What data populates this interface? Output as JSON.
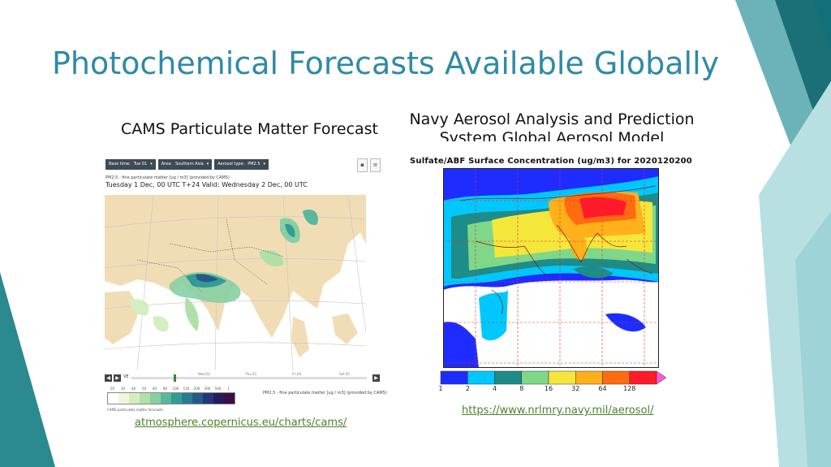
{
  "slide": {
    "title": "Photochemical Forecasts Available Globally",
    "left_heading": "CAMS Particulate Matter Forecast",
    "right_heading": "Navy Aerosol Analysis and Prediction System Global Aerosol Model",
    "left_link": "atmosphere.copernicus.eu/charts/cams/",
    "right_link": "https://www.nrlmry.navy.mil/aerosol/",
    "colors": {
      "title": "#2f8aa6",
      "accent_dark": "#1d7a82",
      "accent_mid": "#3a9aa0",
      "accent_light": "#b7dfe2",
      "link": "#4e7f2f"
    }
  },
  "cams_panel": {
    "dropdowns": [
      {
        "label": "Base time:",
        "value": "Tue 01"
      },
      {
        "label": "Area:",
        "value": "Southern Asia"
      },
      {
        "label": "Aerosol type:",
        "value": "PM2.5"
      }
    ],
    "subtitle": "PM2.5 - fine particulate matter [ug / m3] (provided by CAMS)",
    "valid_line": "Tuesday 1 Dec, 00 UTC T+24 Valid: Wednesday 2 Dec, 00 UTC",
    "timeline": {
      "label": "VE",
      "days": [
        "Wed 02",
        "Thu 03",
        "Fri 04",
        "Sat 05"
      ]
    },
    "colorbar_ticks": [
      "20",
      "30",
      "40",
      "50",
      "60",
      "80",
      "100",
      "150",
      "200",
      "300",
      "500",
      "1"
    ],
    "colorbar_colors": [
      "#ffffff",
      "#eef7dc",
      "#d4eec2",
      "#b0e0a8",
      "#86cfa2",
      "#58b79d",
      "#349a96",
      "#2a7b92",
      "#25598a",
      "#24367a",
      "#2a1a5e",
      "#3a0e47"
    ],
    "colorbar_note": "PM2.5 - fine particulate matter [ug / m3] (provided by CAMS)",
    "footer": "CAMS particulate matter forecasts"
  },
  "navy_panel": {
    "map_title": "Sulfate/ABF Surface Concentration (ug/m3) for 2020120200",
    "colorbar_ticks": [
      "1",
      "2",
      "4",
      "8",
      "16",
      "32",
      "64",
      "128"
    ],
    "colorbar_colors": [
      "#1f2cff",
      "#00c8ff",
      "#1e8c88",
      "#7fd88a",
      "#f5e63c",
      "#ffb11b",
      "#ff6b10",
      "#ff1a2a"
    ],
    "extend_color": "#ff59d6"
  }
}
